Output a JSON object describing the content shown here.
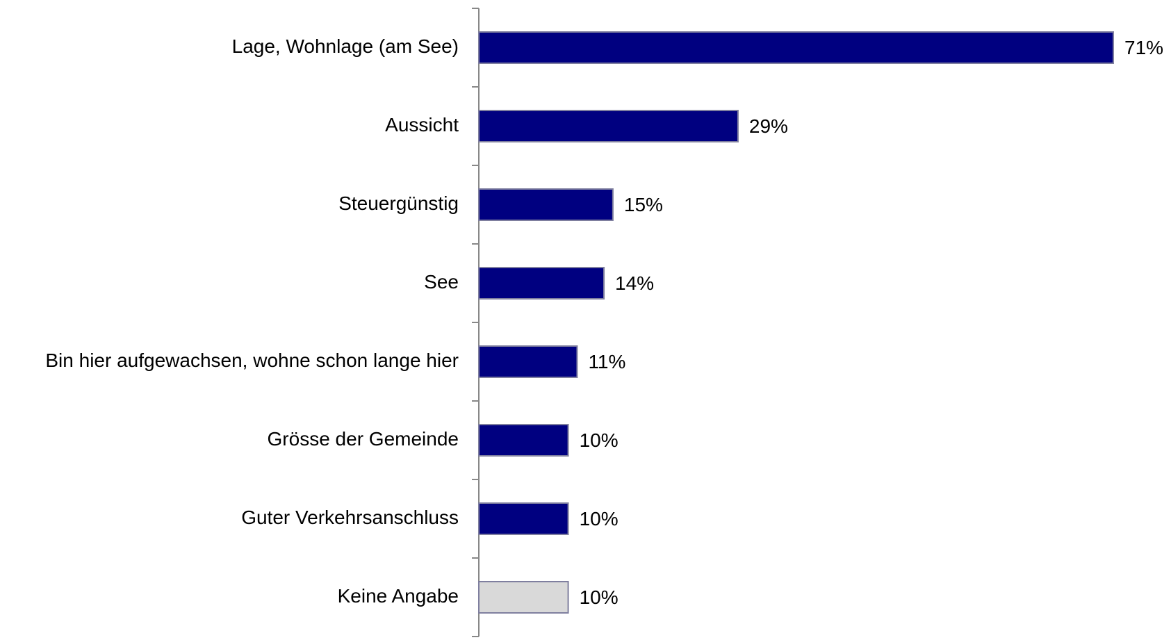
{
  "chart_data": {
    "type": "barh",
    "categories": [
      "Lage, Wohnlage (am See)",
      "Aussicht",
      "Steuergünstig",
      "See",
      "Bin hier aufgewachsen, wohne schon lange hier",
      "Grösse der Gemeinde",
      "Guter Verkehrsanschluss",
      "Keine Angabe"
    ],
    "values": [
      71,
      29,
      15,
      14,
      11,
      10,
      10,
      10
    ],
    "value_labels": [
      "71%",
      "29%",
      "15%",
      "14%",
      "11%",
      "10%",
      "10%",
      "10%"
    ],
    "colors": [
      "#000080",
      "#000080",
      "#000080",
      "#000080",
      "#000080",
      "#000080",
      "#000080",
      "#d9d9d9"
    ],
    "xlim": [
      0,
      71
    ]
  }
}
